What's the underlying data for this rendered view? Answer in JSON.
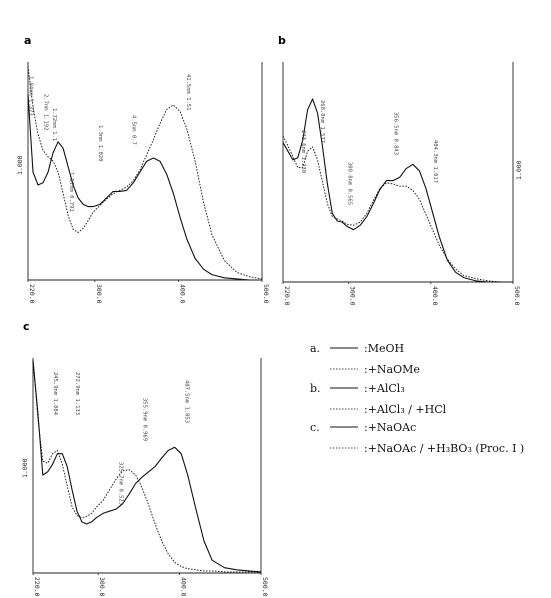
{
  "chart_data": [
    {
      "panel": "a",
      "type": "line",
      "xlabel": "",
      "ylabel": "",
      "xlim": [
        220,
        500
      ],
      "ylim": [
        0,
        2
      ],
      "x_tick_labels": [
        "220.0",
        "300.0",
        "400.0",
        "500.0"
      ],
      "y_tick_labels": [
        "1.000"
      ],
      "series": [
        {
          "style": "solid",
          "x": [
            220,
            226,
            232,
            238,
            244,
            250,
            256,
            262,
            268,
            274,
            280,
            286,
            292,
            298,
            306,
            314,
            322,
            330,
            338,
            346,
            354,
            362,
            370,
            378,
            386,
            394,
            402,
            410,
            420,
            430,
            440,
            455,
            470,
            485,
            500
          ],
          "y": [
            1.72,
            1.0,
            0.88,
            0.9,
            1.0,
            1.18,
            1.28,
            1.22,
            1.05,
            0.88,
            0.76,
            0.7,
            0.68,
            0.68,
            0.7,
            0.76,
            0.82,
            0.82,
            0.83,
            0.9,
            1.0,
            1.1,
            1.13,
            1.1,
            0.98,
            0.8,
            0.58,
            0.38,
            0.2,
            0.1,
            0.05,
            0.02,
            0.01,
            0.0,
            0.0
          ]
        },
        {
          "style": "dashed",
          "x": [
            220,
            226,
            232,
            238,
            244,
            250,
            256,
            262,
            268,
            274,
            280,
            286,
            292,
            298,
            306,
            314,
            322,
            330,
            338,
            346,
            354,
            362,
            370,
            378,
            386,
            394,
            402,
            410,
            420,
            430,
            440,
            455,
            470,
            485,
            500
          ],
          "y": [
            1.98,
            1.6,
            1.35,
            1.2,
            1.14,
            1.1,
            1.0,
            0.8,
            0.6,
            0.47,
            0.44,
            0.48,
            0.55,
            0.63,
            0.69,
            0.75,
            0.8,
            0.83,
            0.86,
            0.92,
            1.02,
            1.16,
            1.3,
            1.45,
            1.58,
            1.62,
            1.56,
            1.4,
            1.1,
            0.72,
            0.42,
            0.18,
            0.07,
            0.03,
            0.01
          ]
        }
      ],
      "annotations": [
        "1.84nm 1.373",
        "2.7nm 1.192",
        "1.72nm 1.1",
        "1.57nm 0.791",
        "1.3nm 1.020",
        "4.5nm 0.7",
        "41.5nm 1.51"
      ]
    },
    {
      "panel": "b",
      "type": "line",
      "xlabel": "",
      "ylabel": "",
      "xlim": [
        220,
        500
      ],
      "ylim": [
        0,
        2
      ],
      "x_tick_labels": [
        "220.0",
        "300.0",
        "400.0",
        "500.0"
      ],
      "y_tick_labels": [
        "1.000"
      ],
      "series": [
        {
          "style": "solid",
          "x": [
            220,
            226,
            232,
            238,
            244,
            250,
            256,
            262,
            268,
            274,
            280,
            286,
            292,
            298,
            306,
            314,
            322,
            330,
            338,
            346,
            354,
            362,
            370,
            378,
            386,
            394,
            402,
            410,
            420,
            430,
            440,
            455,
            470,
            485,
            500
          ],
          "y": [
            1.28,
            1.2,
            1.12,
            1.14,
            1.3,
            1.58,
            1.68,
            1.55,
            1.25,
            0.9,
            0.63,
            0.56,
            0.55,
            0.51,
            0.48,
            0.52,
            0.6,
            0.72,
            0.85,
            0.93,
            0.93,
            0.96,
            1.04,
            1.08,
            1.02,
            0.86,
            0.64,
            0.42,
            0.2,
            0.09,
            0.04,
            0.01,
            0.0,
            0.0,
            0.0
          ]
        },
        {
          "style": "dashed",
          "x": [
            220,
            226,
            232,
            238,
            244,
            250,
            256,
            262,
            268,
            274,
            280,
            286,
            292,
            298,
            306,
            314,
            322,
            330,
            338,
            346,
            354,
            362,
            370,
            378,
            386,
            394,
            402,
            410,
            420,
            430,
            440,
            455,
            470,
            485,
            500
          ],
          "y": [
            1.34,
            1.25,
            1.15,
            1.05,
            1.05,
            1.2,
            1.24,
            1.12,
            0.92,
            0.72,
            0.6,
            0.58,
            0.56,
            0.53,
            0.52,
            0.55,
            0.63,
            0.75,
            0.86,
            0.91,
            0.9,
            0.88,
            0.88,
            0.84,
            0.76,
            0.62,
            0.48,
            0.34,
            0.21,
            0.12,
            0.06,
            0.03,
            0.01,
            0.0,
            0.0
          ]
        }
      ],
      "annotations": [
        "268.0nm 1.577",
        "243.6nm 1.230",
        "300.8nm 0.565",
        "356.5nm 0.843",
        "404.3nm 1.017"
      ]
    },
    {
      "panel": "c",
      "type": "line",
      "xlabel": "",
      "ylabel": "",
      "xlim": [
        220,
        500
      ],
      "ylim": [
        0,
        2
      ],
      "x_tick_labels": [
        "220.0",
        "300.0",
        "400.0",
        "500.0"
      ],
      "y_tick_labels": [
        "1.000"
      ],
      "series": [
        {
          "style": "solid",
          "x": [
            220,
            226,
            232,
            238,
            244,
            250,
            256,
            262,
            268,
            274,
            280,
            286,
            292,
            298,
            306,
            314,
            322,
            330,
            338,
            346,
            354,
            362,
            370,
            378,
            386,
            394,
            402,
            410,
            420,
            430,
            440,
            455,
            470,
            485,
            500
          ],
          "y": [
            2.0,
            1.5,
            0.92,
            0.95,
            1.02,
            1.12,
            1.12,
            1.0,
            0.78,
            0.58,
            0.48,
            0.46,
            0.48,
            0.52,
            0.56,
            0.58,
            0.6,
            0.65,
            0.74,
            0.84,
            0.9,
            0.95,
            1.0,
            1.08,
            1.15,
            1.18,
            1.12,
            0.92,
            0.6,
            0.3,
            0.12,
            0.05,
            0.03,
            0.02,
            0.01
          ]
        },
        {
          "style": "dashed",
          "x": [
            220,
            226,
            232,
            238,
            244,
            250,
            256,
            262,
            268,
            274,
            280,
            286,
            292,
            298,
            306,
            314,
            322,
            330,
            338,
            346,
            354,
            362,
            370,
            378,
            386,
            394,
            402,
            410,
            420,
            430,
            440,
            455,
            470,
            485,
            500
          ],
          "y": [
            2.0,
            1.45,
            1.05,
            1.03,
            1.12,
            1.15,
            1.02,
            0.82,
            0.62,
            0.54,
            0.52,
            0.53,
            0.56,
            0.62,
            0.68,
            0.78,
            0.88,
            0.96,
            0.97,
            0.92,
            0.8,
            0.64,
            0.46,
            0.3,
            0.18,
            0.1,
            0.06,
            0.04,
            0.03,
            0.02,
            0.02,
            0.01,
            0.01,
            0.01,
            0.01
          ]
        }
      ],
      "annotations": [
        "245.9nm 1.084",
        "272.9nm 1.133",
        "325.7nm 0.523",
        "355.9nm 0.969",
        "407.5nm 1.053"
      ]
    }
  ],
  "legend": [
    {
      "group": "a.",
      "style": "solid",
      "label": ":MeOH"
    },
    {
      "group": "",
      "style": "dashed",
      "label": ":+NaOMe"
    },
    {
      "group": "b.",
      "style": "solid",
      "label": ":+AlCl₃"
    },
    {
      "group": "",
      "style": "dashed",
      "label": ":+AlCl₃ / +HCl"
    },
    {
      "group": "c.",
      "style": "solid",
      "label": ":+NaOAc"
    },
    {
      "group": "",
      "style": "dashed",
      "label": ":+NaOAc / +H₃BO₃ (Proc. I )"
    }
  ]
}
